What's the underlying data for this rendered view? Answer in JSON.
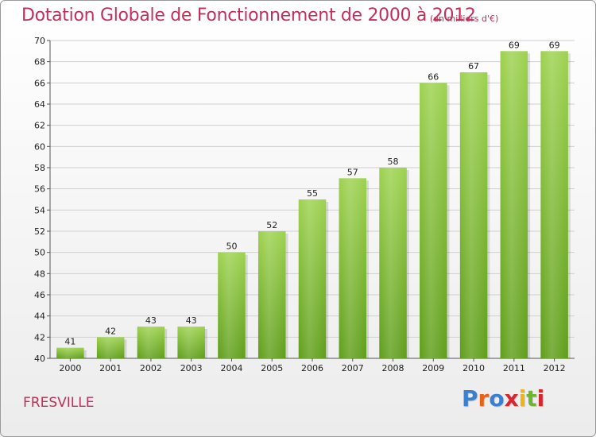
{
  "header": {
    "title": "Dotation Globale de Fonctionnement de 2000 à 2012",
    "subtitle": "(en milliers d'€)"
  },
  "footer": {
    "commune": "FRESVILLE",
    "logo_text": "Proxiti"
  },
  "colors": {
    "title": "#c0305a",
    "bar_top": "#9dd24f",
    "bar_bottom": "#5f9e1a",
    "grid": "#cfcfcf"
  },
  "chart_data": {
    "type": "bar",
    "title": "Dotation Globale de Fonctionnement de 2000 à 2012",
    "subtitle": "(en milliers d'€)",
    "categories": [
      "2000",
      "2001",
      "2002",
      "2003",
      "2004",
      "2005",
      "2006",
      "2007",
      "2008",
      "2009",
      "2010",
      "2011",
      "2012"
    ],
    "values": [
      41,
      42,
      43,
      43,
      50,
      52,
      55,
      57,
      58,
      66,
      67,
      69,
      69
    ],
    "ylim": [
      40,
      70
    ],
    "yticks": [
      40,
      42,
      44,
      46,
      48,
      50,
      52,
      54,
      56,
      58,
      60,
      62,
      64,
      66,
      68,
      70
    ],
    "grid": true,
    "data_labels": true
  }
}
